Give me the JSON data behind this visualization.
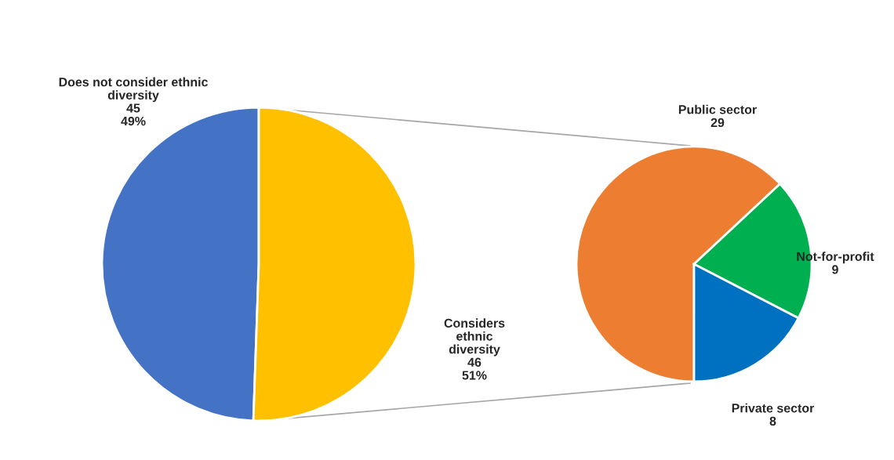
{
  "chart_data": [
    {
      "type": "pie",
      "categories": [
        "Does not consider ethnic diversity",
        "Considers ethnic diversity"
      ],
      "values": [
        45,
        46
      ],
      "colors": [
        "#4472c4",
        "#ffc000"
      ],
      "value_labels": [
        "45\n49%",
        "46\n51%"
      ]
    },
    {
      "type": "pie",
      "categories": [
        "Public sector",
        "Not-for-profit",
        "Private sector"
      ],
      "values": [
        29,
        9,
        8
      ],
      "colors": [
        "#ed7d31",
        "#00b050",
        "#0070c0"
      ],
      "data_labels": true
    }
  ]
}
